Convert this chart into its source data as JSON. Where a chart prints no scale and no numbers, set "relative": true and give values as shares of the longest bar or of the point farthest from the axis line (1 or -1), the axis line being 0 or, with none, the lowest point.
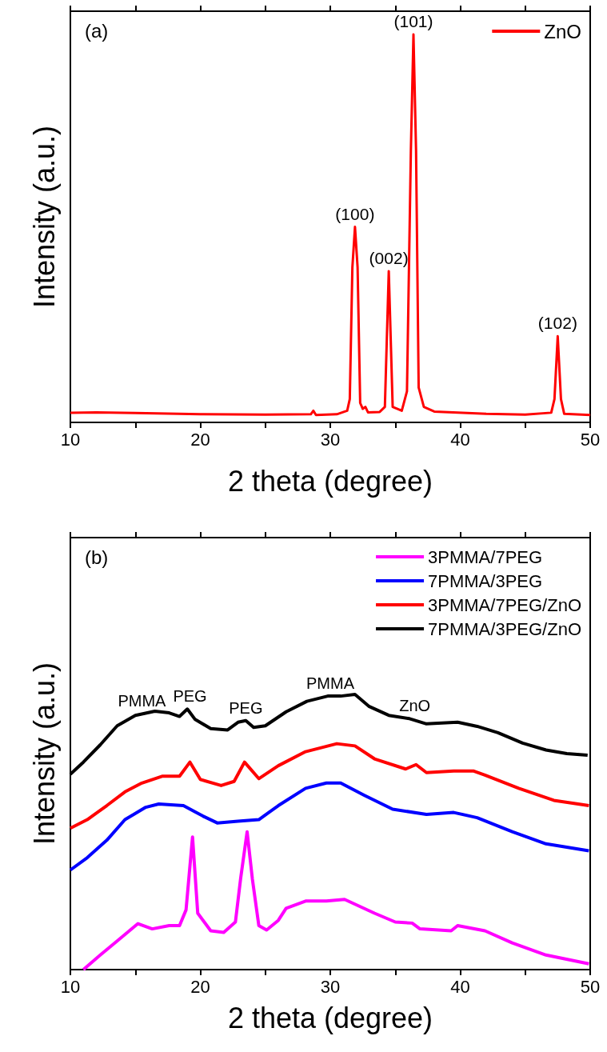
{
  "chart_data": [
    {
      "type": "line",
      "relative": true,
      "xlabel": "2 theta (degree)",
      "ylabel": "Intensity (a.u.)",
      "xlim": [
        10,
        50
      ],
      "xticks": [
        10,
        {
          "value": 15,
          "label": null
        },
        20,
        {
          "value": 25,
          "label": null
        },
        30,
        {
          "value": 35,
          "label": null
        },
        40,
        {
          "value": 45,
          "label": null
        },
        50
      ],
      "grid": false,
      "legend": "top right",
      "marker": "none",
      "line_style": "solid",
      "annotations": [
        "(a)",
        {
          "text": "(100)",
          "x": 31.9,
          "y": 0.504
        },
        {
          "text": "(002)",
          "x": 34.5,
          "y": 0.39
        },
        {
          "text": "(101)",
          "x": 36.4,
          "y": 1
        },
        {
          "text": "(102)",
          "x": 47.5,
          "y": 0.222
        }
      ],
      "series": [
        {
          "name": "ZnO",
          "color": "#ff0000",
          "x": [
            10,
            12,
            15,
            20,
            25,
            28.5,
            28.7,
            28.9,
            30.5,
            31.3,
            31.5,
            31.7,
            31.9,
            32.1,
            32.3,
            32.5,
            32.7,
            32.9,
            33.8,
            34.2,
            34.5,
            34.8,
            35.5,
            35.9,
            36.2,
            36.4,
            36.6,
            36.8,
            37.2,
            38,
            42,
            45,
            47,
            47.25,
            47.5,
            47.75,
            48,
            50
          ],
          "values": [
            0.025,
            0.026,
            0.024,
            0.021,
            0.02,
            0.021,
            0.03,
            0.019,
            0.021,
            0.03,
            0.06,
            0.4,
            0.504,
            0.4,
            0.05,
            0.035,
            0.04,
            0.026,
            0.027,
            0.04,
            0.39,
            0.04,
            0.03,
            0.08,
            0.7,
            1,
            0.7,
            0.09,
            0.04,
            0.028,
            0.022,
            0.02,
            0.025,
            0.06,
            0.222,
            0.06,
            0.022,
            0.019
          ]
        }
      ]
    },
    {
      "type": "line",
      "relative": true,
      "xlabel": "2 theta (degree)",
      "ylabel": "Intensity (a.u.)",
      "xlim": [
        10,
        50
      ],
      "xticks": [
        10,
        {
          "value": 15,
          "label": null
        },
        20,
        {
          "value": 25,
          "label": null
        },
        30,
        {
          "value": 35,
          "label": null
        },
        40,
        {
          "value": 45,
          "label": null
        },
        50
      ],
      "grid": false,
      "legend": "top right",
      "marker": "none",
      "line_style": "solid",
      "annotations": [
        "(b)",
        {
          "text": "PMMA",
          "x": 15.5,
          "y": 0.93
        },
        {
          "text": "PEG",
          "x": 19.2,
          "y": 0.947
        },
        {
          "text": "PEG",
          "x": 23.5,
          "y": 0.905
        },
        {
          "text": "PMMA",
          "x": 30,
          "y": 0.994
        },
        {
          "text": "ZnO",
          "x": 36.5,
          "y": 0.912
        }
      ],
      "series": [
        {
          "name": "3PMMA/7PEG",
          "color": "#ff00ff",
          "x": [
            11,
            12.3,
            13.6,
            15.2,
            16.3,
            17.6,
            18.4,
            18.9,
            19.4,
            19.8,
            20.8,
            21.8,
            22.7,
            23.1,
            23.6,
            24,
            24.5,
            25.1,
            26,
            26.6,
            28.1,
            29.7,
            31.1,
            33.4,
            35,
            36.3,
            36.9,
            39.3,
            39.8,
            41.9,
            44,
            46.6,
            49.9
          ],
          "values": [
            0,
            0.053,
            0.104,
            0.167,
            0.148,
            0.16,
            0.16,
            0.217,
            0.482,
            0.205,
            0.141,
            0.135,
            0.173,
            0.331,
            0.501,
            0.331,
            0.16,
            0.144,
            0.179,
            0.223,
            0.249,
            0.249,
            0.255,
            0.205,
            0.173,
            0.169,
            0.148,
            0.141,
            0.16,
            0.141,
            0.097,
            0.053,
            0.021
          ]
        },
        {
          "name": "7PMMA/3PEG",
          "color": "#0000ff",
          "x": [
            10,
            11.3,
            12.8,
            14.2,
            15.8,
            16.8,
            18.7,
            20.2,
            21.3,
            22.9,
            24.5,
            26,
            28.1,
            29.7,
            30.8,
            32.6,
            34.8,
            37.4,
            39.5,
            41.3,
            44,
            46.6,
            49.9
          ],
          "values": [
            0.362,
            0.407,
            0.47,
            0.545,
            0.59,
            0.602,
            0.596,
            0.558,
            0.533,
            0.539,
            0.545,
            0.596,
            0.659,
            0.678,
            0.678,
            0.634,
            0.583,
            0.564,
            0.571,
            0.552,
            0.501,
            0.457,
            0.432
          ]
        },
        {
          "name": "3PMMA/7PEG/ZnO",
          "color": "#ff0000",
          "x": [
            10,
            11.3,
            12.8,
            14.2,
            15.5,
            17.1,
            18.4,
            19.2,
            20,
            21.6,
            22.6,
            23.4,
            24.5,
            26,
            28.1,
            30.5,
            31.9,
            33.4,
            35.8,
            36.6,
            37.4,
            39.5,
            41,
            41.9,
            44.5,
            47.2,
            49.9
          ],
          "values": [
            0.514,
            0.545,
            0.596,
            0.646,
            0.678,
            0.703,
            0.703,
            0.754,
            0.691,
            0.669,
            0.684,
            0.754,
            0.694,
            0.741,
            0.792,
            0.821,
            0.813,
            0.766,
            0.729,
            0.745,
            0.716,
            0.722,
            0.722,
            0.707,
            0.659,
            0.615,
            0.596
          ]
        },
        {
          "name": "7PMMA/3PEG/ZnO",
          "color": "#000000",
          "x": [
            10,
            11,
            12.3,
            13.6,
            15,
            16.5,
            17.6,
            18.4,
            19,
            19.6,
            20.8,
            22.1,
            22.9,
            23.5,
            24.1,
            25,
            26.6,
            28.2,
            29.8,
            30.8,
            31.9,
            33,
            34.5,
            36.1,
            37.4,
            39.8,
            41.3,
            42.9,
            44.8,
            46.6,
            48.2,
            49.8
          ],
          "values": [
            0.71,
            0.754,
            0.817,
            0.886,
            0.924,
            0.939,
            0.933,
            0.92,
            0.947,
            0.909,
            0.876,
            0.871,
            0.899,
            0.905,
            0.88,
            0.886,
            0.937,
            0.975,
            0.994,
            0.994,
            1,
            0.956,
            0.924,
            0.912,
            0.893,
            0.899,
            0.884,
            0.861,
            0.823,
            0.798,
            0.785,
            0.779
          ]
        }
      ]
    }
  ]
}
